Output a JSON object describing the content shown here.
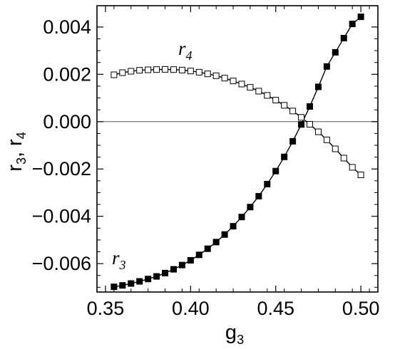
{
  "chart_data": {
    "type": "line",
    "xlabel": "g",
    "xlabel_sub": "3",
    "ylabel_parts": [
      {
        "base": "r",
        "sub": "3"
      },
      {
        "sep": ","
      },
      {
        "base": "r",
        "sub": "4"
      }
    ],
    "xlim": [
      0.345,
      0.51
    ],
    "ylim": [
      -0.0072,
      0.0049
    ],
    "xticks": [
      0.35,
      0.4,
      0.45,
      0.5
    ],
    "xtick_labels": [
      "0.35",
      "0.40",
      "0.45",
      "0.50"
    ],
    "yticks": [
      -0.006,
      -0.004,
      -0.002,
      0.0,
      0.002,
      0.004
    ],
    "ytick_labels": [
      "−0.006",
      "−0.004",
      "−0.002",
      "0.000",
      "0.002",
      "0.004"
    ],
    "zero_line": true,
    "grid": false,
    "series": [
      {
        "label_base": "r",
        "label_sub": "3",
        "marker": "filled-square",
        "x": [
          0.355,
          0.36,
          0.365,
          0.37,
          0.375,
          0.38,
          0.385,
          0.39,
          0.395,
          0.4,
          0.405,
          0.41,
          0.415,
          0.42,
          0.425,
          0.43,
          0.435,
          0.44,
          0.445,
          0.45,
          0.455,
          0.46,
          0.465,
          0.47,
          0.475,
          0.48,
          0.485,
          0.49,
          0.495,
          0.5
        ],
        "y": [
          -0.00698,
          -0.00692,
          -0.00684,
          -0.00675,
          -0.00665,
          -0.00654,
          -0.0064,
          -0.00624,
          -0.00606,
          -0.00586,
          -0.00563,
          -0.00537,
          -0.00509,
          -0.00477,
          -0.00442,
          -0.00403,
          -0.00361,
          -0.00315,
          -0.00264,
          -0.00209,
          -0.00149,
          -0.00083,
          -0.00012,
          0.00064,
          0.00147,
          0.00233,
          0.00293,
          0.00353,
          0.00413,
          0.00443
        ]
      },
      {
        "label_base": "r",
        "label_sub": "4",
        "marker": "open-square",
        "x": [
          0.355,
          0.36,
          0.365,
          0.37,
          0.375,
          0.38,
          0.385,
          0.39,
          0.395,
          0.4,
          0.405,
          0.41,
          0.415,
          0.42,
          0.425,
          0.43,
          0.435,
          0.44,
          0.445,
          0.45,
          0.455,
          0.46,
          0.465,
          0.47,
          0.475,
          0.48,
          0.485,
          0.49,
          0.495,
          0.5
        ],
        "y": [
          0.00198,
          0.00207,
          0.00213,
          0.00217,
          0.00219,
          0.0022,
          0.00221,
          0.0022,
          0.00218,
          0.00214,
          0.00209,
          0.00202,
          0.00194,
          0.00184,
          0.00172,
          0.00159,
          0.00145,
          0.00129,
          0.00111,
          0.00091,
          0.00069,
          0.00045,
          0.00018,
          -0.00011,
          -0.00043,
          -0.00077,
          -0.00115,
          -0.00154,
          -0.00193,
          -0.00225
        ]
      }
    ]
  }
}
